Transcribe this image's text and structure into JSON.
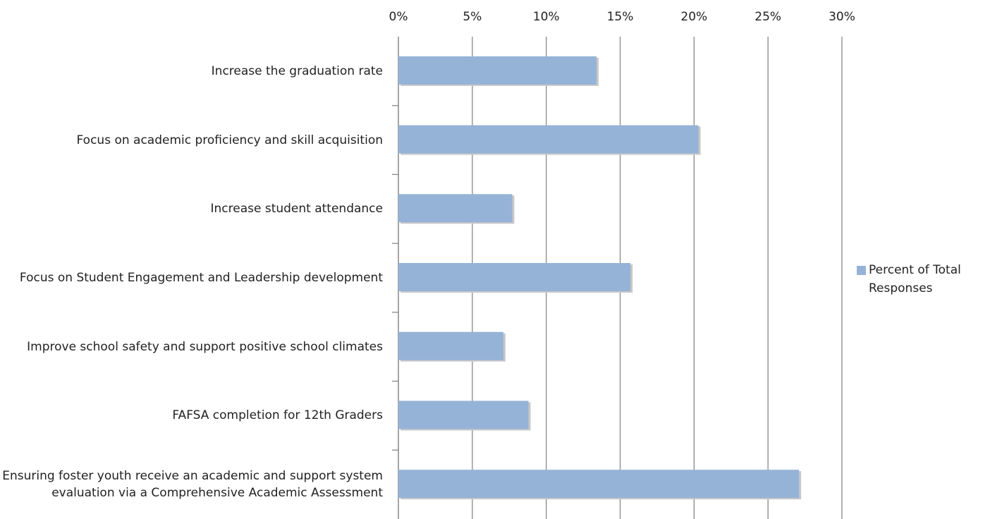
{
  "chart_data": {
    "type": "bar",
    "orientation": "horizontal",
    "categories": [
      "Increase the graduation rate",
      "Focus on academic proficiency and skill acquisition",
      "Increase student attendance",
      "Focus on Student Engagement and Leadership development",
      "Improve school safety and support positive school climates",
      "FAFSA completion for 12th Graders",
      "Ensuring foster youth receive an academic and support system evaluation via a Comprehensive Academic Assessment"
    ],
    "series": [
      {
        "name": "Percent of Total Responses",
        "color": "#95b3d7",
        "values": [
          13.4,
          20.3,
          7.7,
          15.7,
          7.1,
          8.8,
          27.1
        ]
      }
    ],
    "xlim": [
      0,
      30
    ],
    "xticks": [
      {
        "value": 0,
        "label": "0%"
      },
      {
        "value": 5,
        "label": "5%"
      },
      {
        "value": 10,
        "label": "10%"
      },
      {
        "value": 15,
        "label": "15%"
      },
      {
        "value": 20,
        "label": "20%"
      },
      {
        "value": 25,
        "label": "25%"
      },
      {
        "value": 30,
        "label": "30%"
      }
    ],
    "grid": true,
    "legend": "right"
  }
}
